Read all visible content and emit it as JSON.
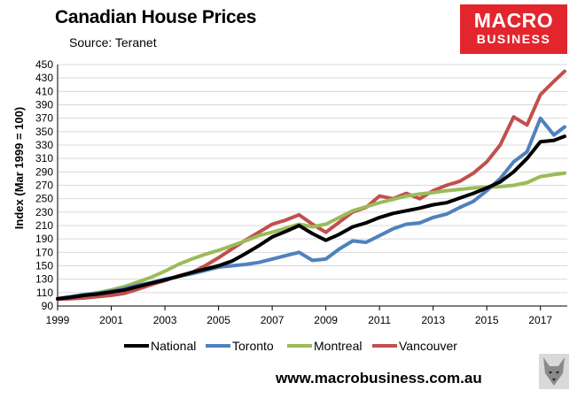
{
  "header": {
    "title": "Canadian House Prices",
    "source": "Source: Teranet"
  },
  "logo": {
    "line1": "MACRO",
    "line2": "BUSINESS"
  },
  "footer": {
    "url": "www.macrobusiness.com.au"
  },
  "colors": {
    "National": "#000000",
    "Toronto": "#4f81bd",
    "Montreal": "#9bbb59",
    "Vancouver": "#c0504d",
    "logo_bg": "#e3262d"
  },
  "chart_data": {
    "type": "line",
    "title": "Canadian House Prices",
    "subtitle": "Source: Teranet",
    "xlabel": "",
    "ylabel": "Index (Mar 1999 = 100)",
    "xlim": [
      1999.0,
      2018.0
    ],
    "ylim": [
      90,
      450
    ],
    "x_ticks": [
      "1999",
      "2001",
      "2003",
      "2005",
      "2007",
      "2009",
      "2011",
      "2013",
      "2015",
      "2017"
    ],
    "y_ticks": [
      90,
      110,
      130,
      150,
      170,
      190,
      210,
      230,
      250,
      270,
      290,
      310,
      330,
      350,
      370,
      390,
      410,
      430,
      450
    ],
    "grid": "horizontal",
    "legend": "bottom",
    "x": [
      1999.0,
      1999.5,
      2000.0,
      2000.5,
      2001.0,
      2001.5,
      2002.0,
      2002.5,
      2003.0,
      2003.5,
      2004.0,
      2004.5,
      2005.0,
      2005.5,
      2006.0,
      2006.5,
      2007.0,
      2007.5,
      2008.0,
      2008.5,
      2009.0,
      2009.5,
      2010.0,
      2010.5,
      2011.0,
      2011.5,
      2012.0,
      2012.5,
      2013.0,
      2013.5,
      2014.0,
      2014.5,
      2015.0,
      2015.5,
      2016.0,
      2016.5,
      2017.0,
      2017.5,
      2017.9
    ],
    "series": [
      {
        "name": "National",
        "values": [
          101,
          103,
          106,
          108,
          111,
          114,
          119,
          124,
          129,
          134,
          140,
          145,
          150,
          157,
          168,
          180,
          193,
          201,
          210,
          198,
          188,
          197,
          208,
          214,
          222,
          228,
          232,
          236,
          241,
          244,
          251,
          258,
          266,
          275,
          290,
          310,
          335,
          337,
          343
        ]
      },
      {
        "name": "Toronto",
        "values": [
          101,
          104,
          107,
          109,
          112,
          116,
          121,
          125,
          130,
          134,
          138,
          143,
          148,
          150,
          152,
          155,
          160,
          165,
          170,
          158,
          160,
          175,
          187,
          185,
          195,
          205,
          212,
          214,
          222,
          227,
          237,
          246,
          262,
          280,
          305,
          320,
          370,
          345,
          357
        ]
      },
      {
        "name": "Montreal",
        "values": [
          101,
          104,
          107,
          110,
          114,
          119,
          126,
          133,
          142,
          152,
          160,
          167,
          173,
          180,
          187,
          195,
          200,
          206,
          212,
          208,
          212,
          222,
          232,
          238,
          244,
          249,
          254,
          257,
          259,
          262,
          264,
          266,
          267,
          268,
          270,
          274,
          283,
          286,
          288
        ]
      },
      {
        "name": "Vancouver",
        "values": [
          100,
          101,
          102,
          104,
          106,
          109,
          115,
          122,
          128,
          135,
          140,
          150,
          162,
          175,
          188,
          200,
          212,
          218,
          226,
          212,
          200,
          215,
          230,
          237,
          254,
          250,
          258,
          250,
          262,
          270,
          276,
          288,
          305,
          330,
          372,
          360,
          405,
          425,
          440
        ]
      }
    ]
  }
}
